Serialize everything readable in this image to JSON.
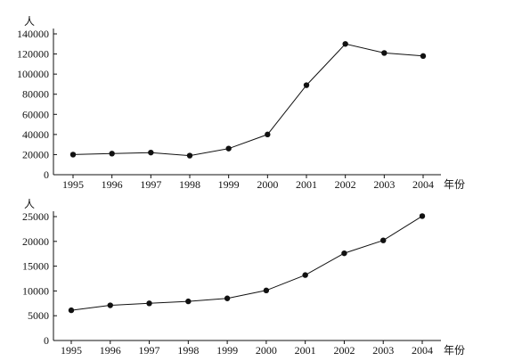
{
  "chart_data": [
    {
      "type": "line",
      "ylabel": "人",
      "xlabel": "年份",
      "x": [
        "1995",
        "1996",
        "1997",
        "1998",
        "1999",
        "2000",
        "2001",
        "2002",
        "2003",
        "2004"
      ],
      "values": [
        20000,
        21000,
        22000,
        19000,
        26000,
        40000,
        89000,
        130000,
        121000,
        118000
      ],
      "ylim": [
        0,
        140000
      ],
      "yticks": [
        "0",
        "20000",
        "40000",
        "60000",
        "80000",
        "100000",
        "120000",
        "140000"
      ],
      "ytick_values": [
        0,
        20000,
        40000,
        60000,
        80000,
        100000,
        120000,
        140000
      ],
      "grid": false,
      "color": "#111111"
    },
    {
      "type": "line",
      "ylabel": "人",
      "xlabel": "年份",
      "x": [
        "1995",
        "1996",
        "1997",
        "1998",
        "1999",
        "2000",
        "2001",
        "2002",
        "2003",
        "2004"
      ],
      "values": [
        6100,
        7100,
        7500,
        7900,
        8500,
        10100,
        13200,
        17600,
        20200,
        25100
      ],
      "ylim": [
        0,
        25000
      ],
      "yticks": [
        "0",
        "5000",
        "10000",
        "15000",
        "20000",
        "25000"
      ],
      "ytick_values": [
        0,
        5000,
        10000,
        15000,
        20000,
        25000
      ],
      "grid": false,
      "color": "#111111"
    }
  ]
}
